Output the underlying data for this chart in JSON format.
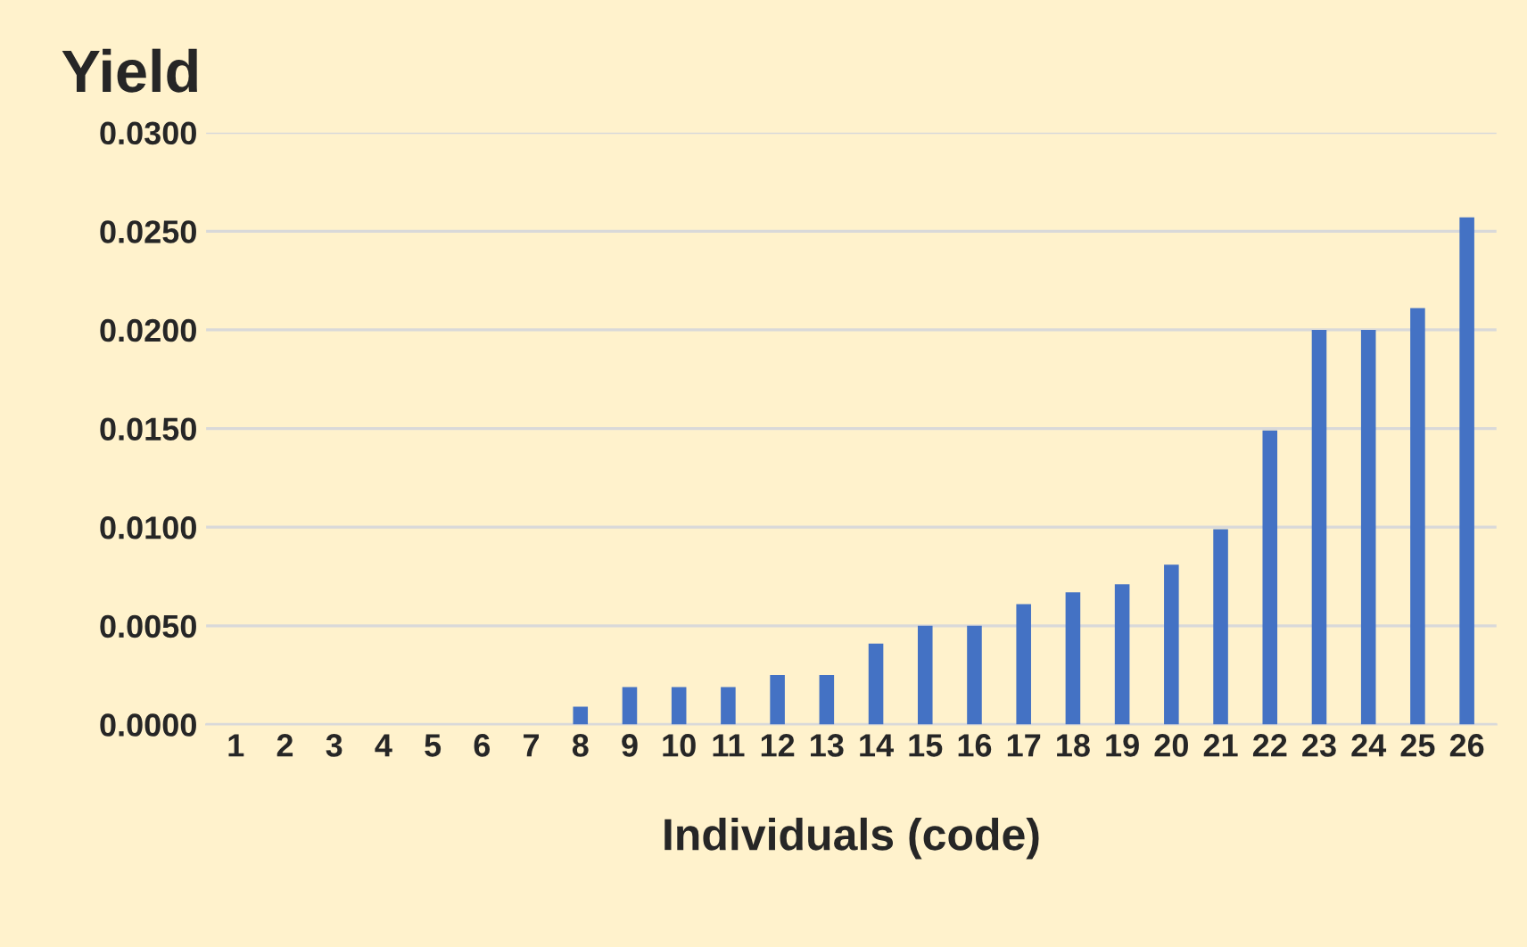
{
  "chart_data": {
    "type": "bar",
    "title": "Yield",
    "xlabel": "Individuals (code)",
    "categories": [
      "1",
      "2",
      "3",
      "4",
      "5",
      "6",
      "7",
      "8",
      "9",
      "10",
      "11",
      "12",
      "13",
      "14",
      "15",
      "16",
      "17",
      "18",
      "19",
      "20",
      "21",
      "22",
      "23",
      "24",
      "25",
      "26"
    ],
    "values": [
      0,
      0,
      0,
      0,
      0,
      0,
      0,
      0.0009,
      0.0019,
      0.0019,
      0.0019,
      0.0025,
      0.0025,
      0.0041,
      0.005,
      0.005,
      0.0061,
      0.0067,
      0.0071,
      0.0081,
      0.0099,
      0.0149,
      0.02,
      0.02,
      0.0211,
      0.0257
    ],
    "color": "#4472c4",
    "ylim": [
      0,
      0.03
    ],
    "yticks": [
      {
        "value": 0,
        "label": "0.0000"
      },
      {
        "value": 0.005,
        "label": "0.0050"
      },
      {
        "value": 0.01,
        "label": "0.0100"
      },
      {
        "value": 0.015,
        "label": "0.0150"
      },
      {
        "value": 0.02,
        "label": "0.0200"
      },
      {
        "value": 0.025,
        "label": "0.0250"
      },
      {
        "value": 0.03,
        "label": "0.0300"
      }
    ],
    "grid": "y"
  }
}
